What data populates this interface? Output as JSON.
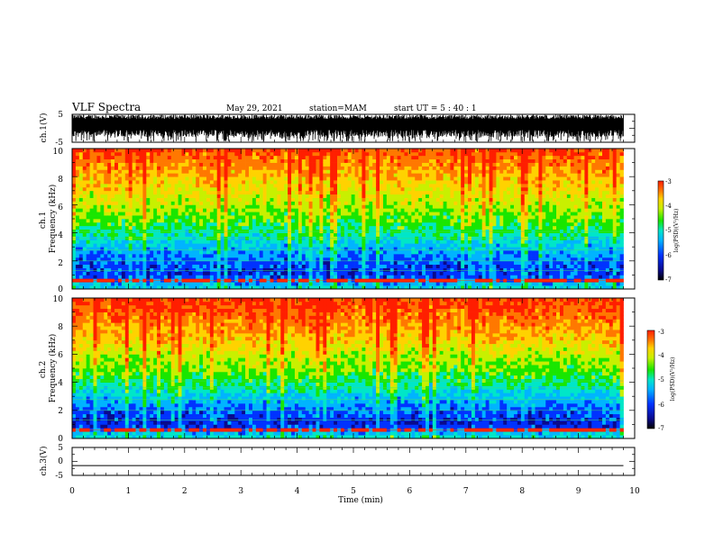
{
  "header": {
    "title": "VLF Spectra",
    "date": "May 29, 2021",
    "station": "station=MAM",
    "start": "start  UT  =   5  : 40 : 1"
  },
  "colors": {
    "colormap": [
      "#0a0a8c",
      "#0033ff",
      "#00b4ff",
      "#00e6c8",
      "#19e600",
      "#c8f000",
      "#ffd200",
      "#ff7800",
      "#ff1e00"
    ],
    "trace": "#000000",
    "background": "#ffffff"
  },
  "chart_data": [
    {
      "type": "line",
      "panel": "ch1-waveform",
      "ylabel": "ch.1(V)",
      "ylim": [
        -5,
        5
      ],
      "yticks": [
        "5",
        "-5"
      ],
      "xlim": [
        0,
        10
      ],
      "description_values": {
        "amplitude_range_V": [
          -4.6,
          4.8
        ],
        "appearance": "dense noisy waveform filling upper portion"
      }
    },
    {
      "type": "heatmap",
      "panel": "ch1-spectrogram",
      "ylabel": "ch.1\nFrequency  (kHz)",
      "ylabel_lines": [
        "ch.1",
        "Frequency  (kHz)"
      ],
      "ylim": [
        0,
        10
      ],
      "yticks": [
        "0",
        "2",
        "4",
        "6",
        "8",
        "10"
      ],
      "xlim": [
        0,
        10
      ],
      "colorbar": {
        "label": "log(PSD)(V²/Hz)",
        "range": [
          -7,
          -3
        ],
        "ticks": [
          "-3",
          "-4",
          "-5",
          "-6",
          "-7"
        ]
      },
      "level_profile": {
        "freq_kHz": [
          0,
          1,
          2,
          3,
          4,
          5,
          6,
          7,
          8,
          9,
          10
        ],
        "log_psd": [
          -5.5,
          -6.4,
          -6.2,
          -5.8,
          -5.3,
          -4.9,
          -4.6,
          -4.3,
          -4.0,
          -3.7,
          -3.4
        ]
      }
    },
    {
      "type": "heatmap",
      "panel": "ch2-spectrogram",
      "ylabel": "ch.2\nFrequency  (kHz)",
      "ylabel_lines": [
        "ch.2",
        "Frequency  (kHz)"
      ],
      "ylim": [
        0,
        10
      ],
      "yticks": [
        "0",
        "2",
        "4",
        "6",
        "8",
        "10"
      ],
      "xlim": [
        0,
        10
      ],
      "colorbar": {
        "label": "log(PSD)(V²/Hz)",
        "range": [
          -7,
          -3
        ],
        "ticks": [
          "-3",
          "-4",
          "-5",
          "-6",
          "-7"
        ]
      },
      "level_profile": {
        "freq_kHz": [
          0,
          1,
          2,
          3,
          4,
          5,
          6,
          7,
          8,
          9,
          10
        ],
        "log_psd": [
          -5.4,
          -6.5,
          -6.2,
          -5.7,
          -5.2,
          -4.8,
          -4.5,
          -4.1,
          -3.8,
          -3.5,
          -3.3
        ]
      }
    },
    {
      "type": "line",
      "panel": "ch3-waveform",
      "ylabel": "ch.3(V)",
      "ylim": [
        -5,
        5
      ],
      "yticks": [
        "5",
        "0",
        "-5"
      ],
      "xlim": [
        0,
        10
      ],
      "xlabel": "Time  (min)",
      "xticks": [
        "0",
        "1",
        "2",
        "3",
        "4",
        "5",
        "6",
        "7",
        "8",
        "9",
        "10"
      ],
      "description_values": {
        "constant_V": -1.5,
        "data_end_min": 9.8
      }
    }
  ]
}
